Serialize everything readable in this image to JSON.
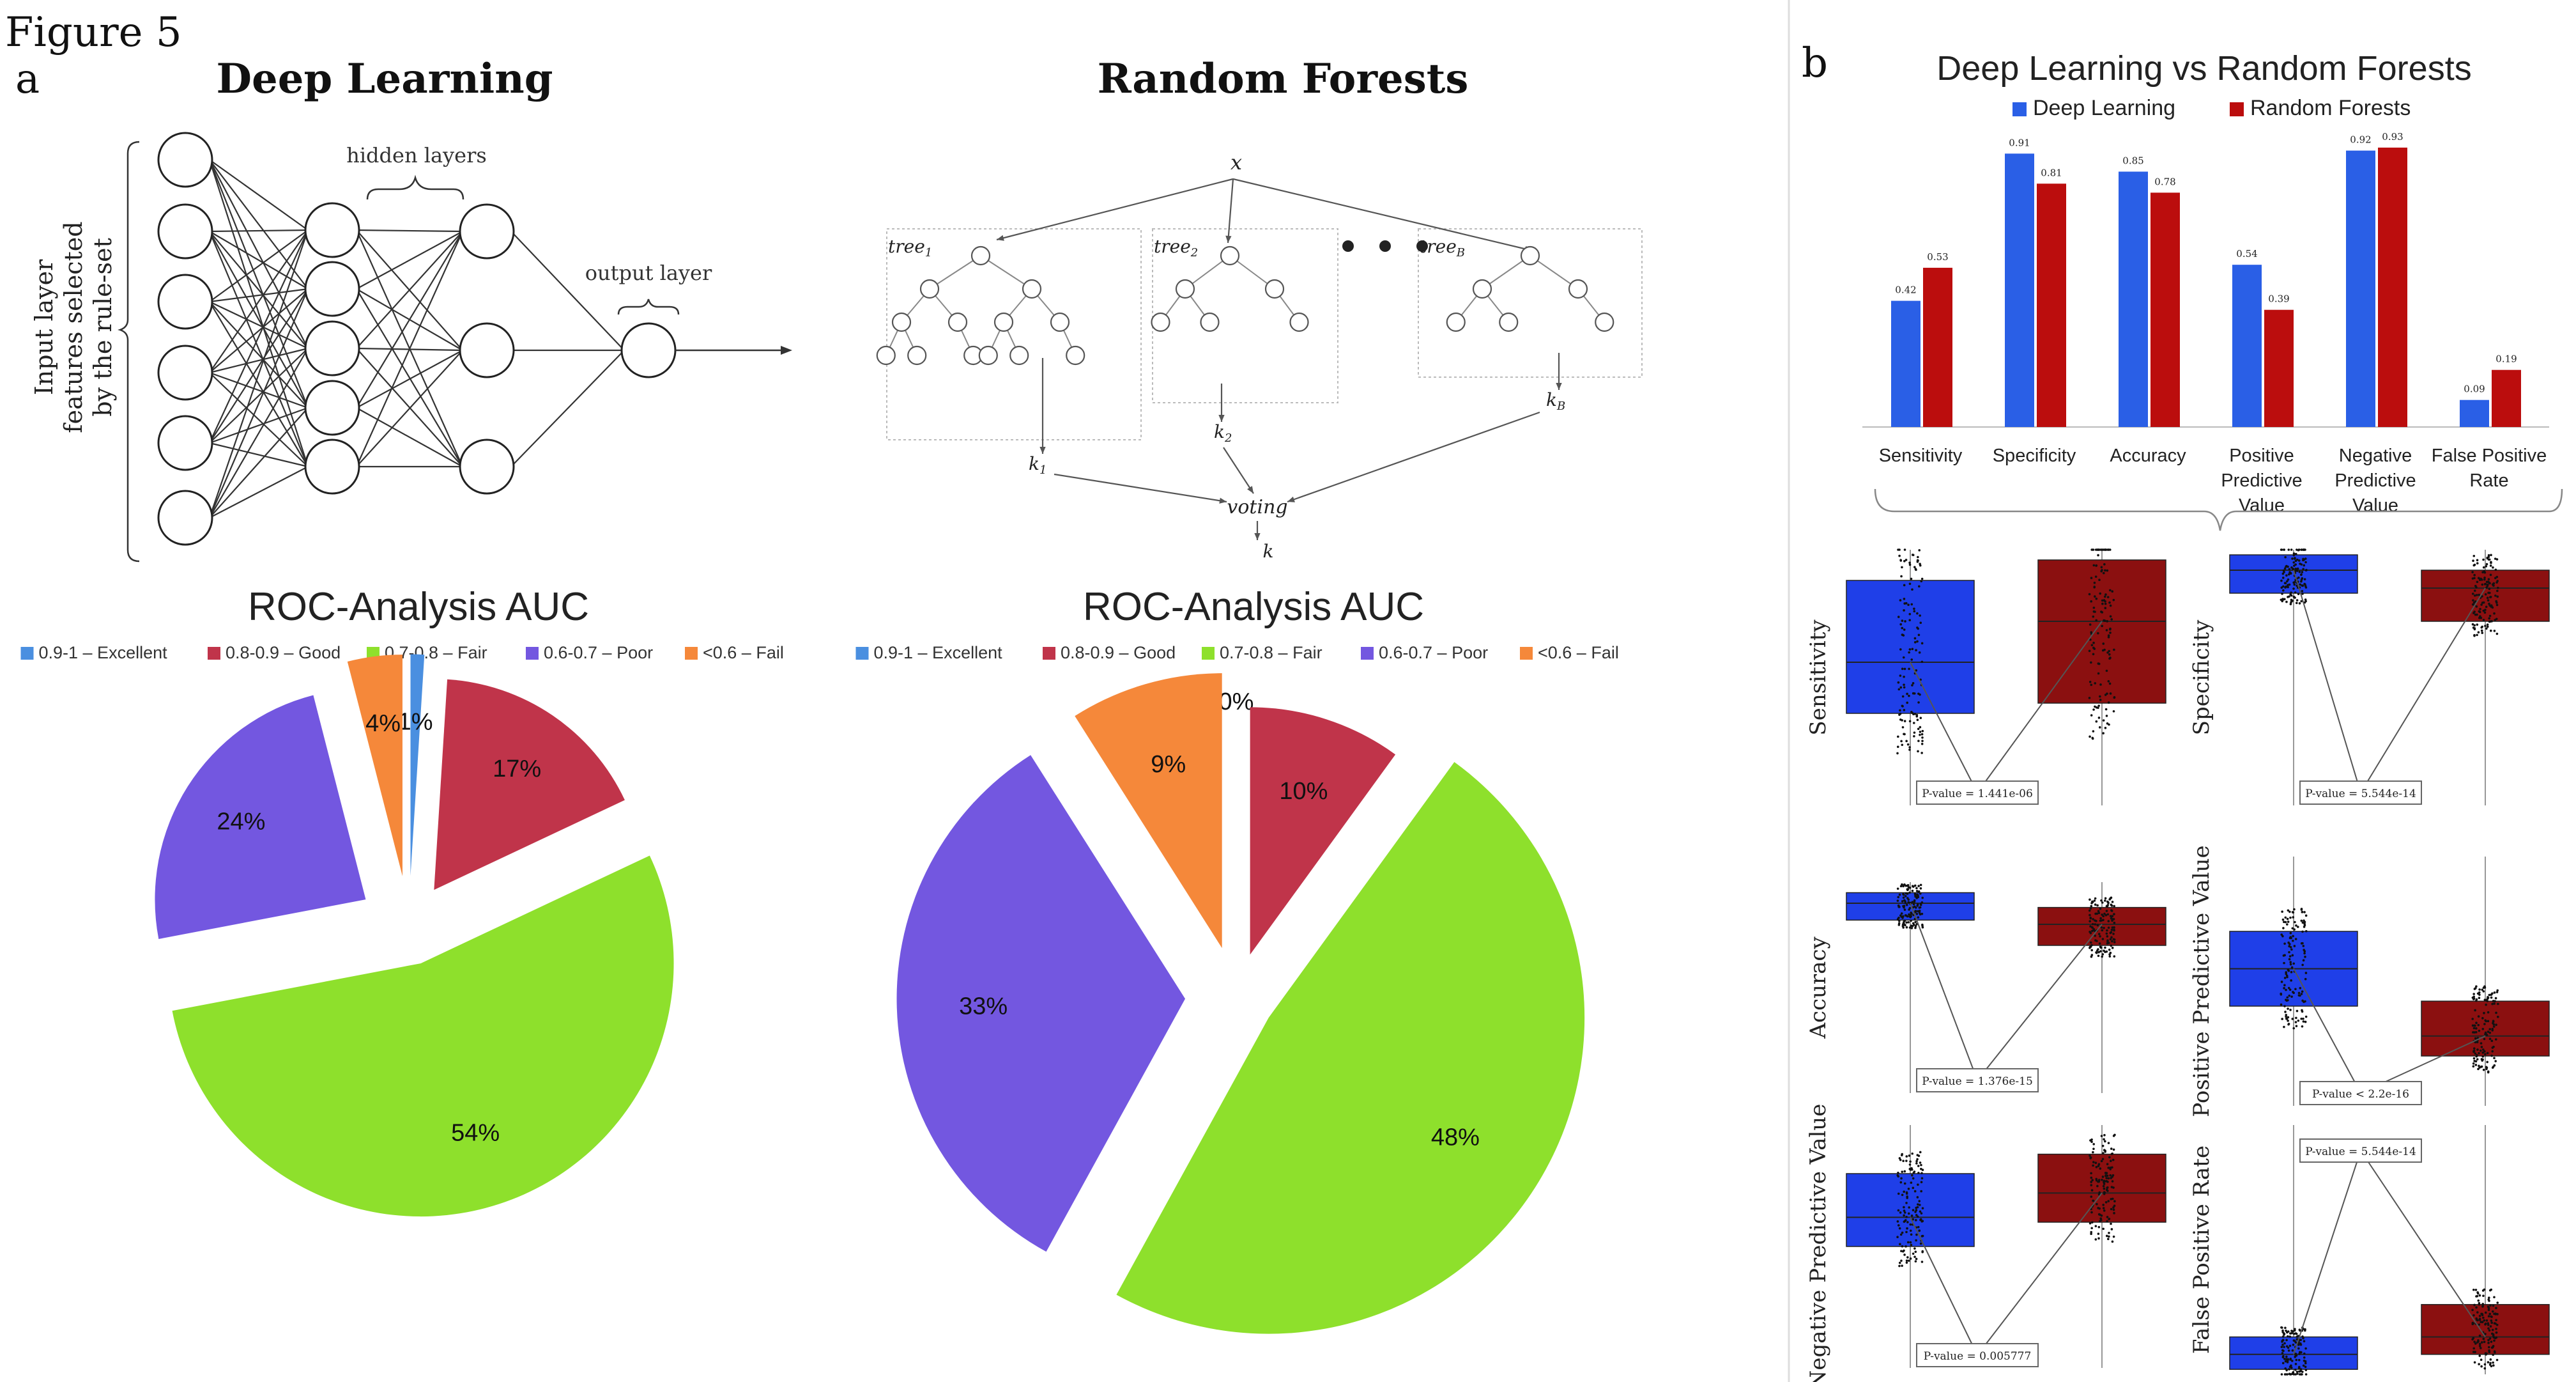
{
  "figure_label": "Figure 5",
  "panel_a_label": "a",
  "panel_b_label": "b",
  "colors": {
    "excellent": "#4a8fe0",
    "good": "#c0344a",
    "fair": "#8ee02c",
    "poor": "#7357e0",
    "fail": "#f5883a",
    "deep_learning": "#2a5fe6",
    "random_forests": "#bb0d0d",
    "box_dl": "#1f3fe8",
    "box_rf": "#8b1010"
  },
  "deep_learning_diagram": {
    "title": "Deep Learning",
    "hidden_label": "hidden layers",
    "output_label": "output layer",
    "input_label_lines": [
      "Input layer",
      "features selected",
      "by the rule-set"
    ]
  },
  "random_forest_diagram": {
    "title": "Random Forests",
    "x_label": "x",
    "tree_labels": [
      "tree",
      "tree",
      "tree"
    ],
    "tree_subscripts": [
      "1",
      "2",
      "B"
    ],
    "k_labels": [
      "k",
      "k",
      "k"
    ],
    "k_subscripts": [
      "1",
      "2",
      "B"
    ],
    "voting_label": "voting",
    "k_final": "k"
  },
  "chart_data": [
    {
      "type": "pie",
      "title": "ROC-Analysis AUC",
      "legend_position": "top",
      "categories": [
        "0.9-1 – Excellent",
        "0.8-0.9 – Good",
        "0.7-0.8 – Fair",
        "0.6-0.7 – Poor",
        "<0.6 – Fail"
      ],
      "values": [
        1,
        17,
        54,
        24,
        4
      ],
      "labels": [
        "1%",
        "17%",
        "54%",
        "24%",
        "4%"
      ]
    },
    {
      "type": "pie",
      "title": "ROC-Analysis AUC",
      "legend_position": "top",
      "categories": [
        "0.9-1 – Excellent",
        "0.8-0.9 – Good",
        "0.7-0.8 – Fair",
        "0.6-0.7 – Poor",
        "<0.6 – Fail"
      ],
      "values": [
        0,
        10,
        48,
        33,
        9
      ],
      "labels": [
        "0%",
        "10%",
        "48%",
        "33%",
        "9%"
      ]
    },
    {
      "type": "bar",
      "title": "Deep Learning vs Random Forests",
      "legend_position": "top",
      "categories": [
        "Sensitivity",
        "Specificity",
        "Accuracy",
        "Positive Predictive Value",
        "Negative Predictive Value",
        "False Positive Rate"
      ],
      "category_lines": [
        [
          "Sensitivity"
        ],
        [
          "Specificity"
        ],
        [
          "Accuracy"
        ],
        [
          "Positive",
          "Predictive",
          "Value"
        ],
        [
          "Negative",
          "Predictive",
          "Value"
        ],
        [
          "False Positive",
          "Rate"
        ]
      ],
      "ylim": [
        0,
        1
      ],
      "series": [
        {
          "name": "Deep Learning",
          "values": [
            0.42,
            0.91,
            0.85,
            0.54,
            0.92,
            0.09
          ],
          "labels": [
            "0.42",
            "0.91",
            "0.85",
            "0.54",
            "0.92",
            "0.09"
          ]
        },
        {
          "name": "Random Forests",
          "values": [
            0.53,
            0.81,
            0.78,
            0.39,
            0.93,
            0.19
          ],
          "labels": [
            "0.53",
            "0.81",
            "0.78",
            "0.39",
            "0.93",
            "0.19"
          ]
        }
      ]
    },
    {
      "type": "box",
      "panels": [
        {
          "ylabel": "Sensitivity",
          "pvalue": "P-value = 1.441e-06",
          "dl": {
            "q1": 0.36,
            "med": 0.56,
            "q3": 0.88
          },
          "rf": {
            "q1": 0.4,
            "med": 0.72,
            "q3": 0.96
          }
        },
        {
          "ylabel": "Specificity",
          "pvalue": "P-value = 5.544e-14",
          "dl": {
            "q1": 0.83,
            "med": 0.92,
            "q3": 0.98
          },
          "rf": {
            "q1": 0.72,
            "med": 0.85,
            "q3": 0.92
          }
        },
        {
          "ylabel": "Accuracy",
          "pvalue": "P-value = 1.376e-15",
          "dl": {
            "q1": 0.82,
            "med": 0.9,
            "q3": 0.95
          },
          "rf": {
            "q1": 0.7,
            "med": 0.8,
            "q3": 0.88
          }
        },
        {
          "ylabel": "Positive Predictive Value",
          "pvalue": "P-value < 2.2e-16",
          "dl": {
            "q1": 0.4,
            "med": 0.55,
            "q3": 0.7
          },
          "rf": {
            "q1": 0.2,
            "med": 0.28,
            "q3": 0.42
          }
        },
        {
          "ylabel": "Negative Predictive Value",
          "pvalue": "P-value = 0.005777",
          "dl": {
            "q1": 0.5,
            "med": 0.62,
            "q3": 0.8
          },
          "rf": {
            "q1": 0.6,
            "med": 0.72,
            "q3": 0.88
          }
        },
        {
          "ylabel": "False Positive Rate",
          "pvalue": "P-value = 5.544e-14",
          "dl": {
            "q1": 0.02,
            "med": 0.08,
            "q3": 0.15
          },
          "rf": {
            "q1": 0.08,
            "med": 0.15,
            "q3": 0.28
          }
        }
      ]
    }
  ]
}
